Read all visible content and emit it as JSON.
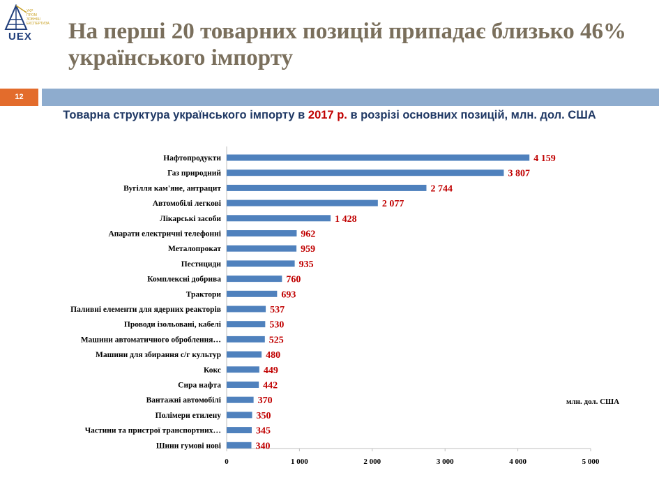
{
  "header": {
    "logo_text": "UEX",
    "logo_small_lines": [
      "УКР",
      "ПРОМ",
      "ЗОВНІШ",
      "ЕКСПЕРТИЗА"
    ],
    "title": "На перші 20 товарних позицій припадає близько 46% українського імпорту",
    "slide_number": "12"
  },
  "subtitle": {
    "before": "Товарна структура українського імпорту в ",
    "year": "2017 р.",
    "after": " в розрізі основних позицій, млн. дол. США"
  },
  "colors": {
    "bar": "#4f81bd",
    "value": "#c00000",
    "band": "#8eacce",
    "slide_number_bg": "#e36c2c"
  },
  "chart_data": {
    "type": "bar",
    "orientation": "horizontal",
    "categories": [
      "Нафтопродукти",
      "Газ природний",
      "Вугілля кам'яне, антрацит",
      "Автомобілі легкові",
      "Лікарські засоби",
      "Апарати електричні телефонні",
      "Металопрокат",
      "Пестициди",
      "Комплексні добрива",
      "Трактори",
      "Паливні елементи для ядерних реакторів",
      "Проводи ізольовані, кабелі",
      "Машини автоматичного оброблення…",
      "Машини для збирання с/г культур",
      "Кокс",
      "Сира нафта",
      "Вантажні автомобілі",
      "Полімери етилену",
      "Частини та пристрої транспортних…",
      "Шини гумові нові"
    ],
    "values": [
      4159,
      3807,
      2744,
      2077,
      1428,
      962,
      959,
      935,
      760,
      693,
      537,
      530,
      525,
      480,
      449,
      442,
      370,
      350,
      345,
      340
    ],
    "value_labels": [
      "4 159",
      "3 807",
      "2 744",
      "2 077",
      "1 428",
      "962",
      "959",
      "935",
      "760",
      "693",
      "537",
      "530",
      "525",
      "480",
      "449",
      "442",
      "370",
      "350",
      "345",
      "340"
    ],
    "xlim": [
      0,
      5000
    ],
    "ticks": [
      0,
      1000,
      2000,
      3000,
      4000,
      5000
    ],
    "tick_labels": [
      "0",
      "1 000",
      "2 000",
      "3 000",
      "4 000",
      "5 000"
    ],
    "unit_label": "млн. дол. США",
    "grid": false
  }
}
